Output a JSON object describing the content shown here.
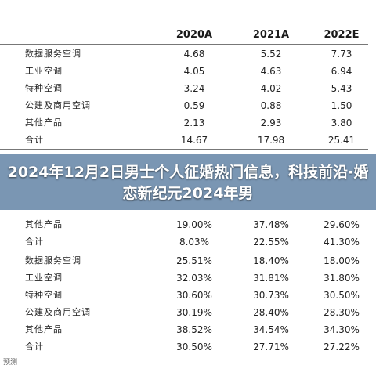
{
  "table": {
    "header": [
      "2020A",
      "2021A",
      "2022E"
    ],
    "section1": [
      {
        "label": "数据服务空调",
        "values": [
          "4.68",
          "5.52",
          "7.73"
        ]
      },
      {
        "label": "工业空调",
        "values": [
          "4.05",
          "4.63",
          "6.94"
        ]
      },
      {
        "label": "特种空调",
        "values": [
          "3.24",
          "4.02",
          "5.43"
        ]
      },
      {
        "label": "公建及商用空调",
        "values": [
          "0.59",
          "0.88",
          "1.50"
        ]
      },
      {
        "label": "其他产品",
        "values": [
          "2.13",
          "2.93",
          "3.80"
        ]
      },
      {
        "label": "合计",
        "values": [
          "14.67",
          "17.98",
          "25.41"
        ]
      }
    ],
    "section2_visible": [
      {
        "label": "其他产品",
        "values": [
          "19.00%",
          "37.48%",
          "29.60%"
        ]
      },
      {
        "label": "合计",
        "values": [
          "8.03%",
          "22.55%",
          "41.30%"
        ]
      }
    ],
    "section3": [
      {
        "label": "数据服务空调",
        "values": [
          "25.51%",
          "18.40%",
          "18.00%"
        ]
      },
      {
        "label": "工业空调",
        "values": [
          "32.03%",
          "31.81%",
          "31.80%"
        ]
      },
      {
        "label": "特种空调",
        "values": [
          "30.60%",
          "30.73%",
          "30.50%"
        ]
      },
      {
        "label": "公建及商用空调",
        "values": [
          "30.19%",
          "28.40%",
          "28.30%"
        ]
      },
      {
        "label": "其他产品",
        "values": [
          "38.52%",
          "34.54%",
          "34.30%"
        ]
      },
      {
        "label": "合计",
        "values": [
          "30.50%",
          "27.71%",
          "27.22%"
        ]
      }
    ]
  },
  "overlay": {
    "title": "2024年12月2日男士个人征婚热门信息，科技前沿·婚恋新纪元2024年男"
  },
  "footnote": "预测"
}
